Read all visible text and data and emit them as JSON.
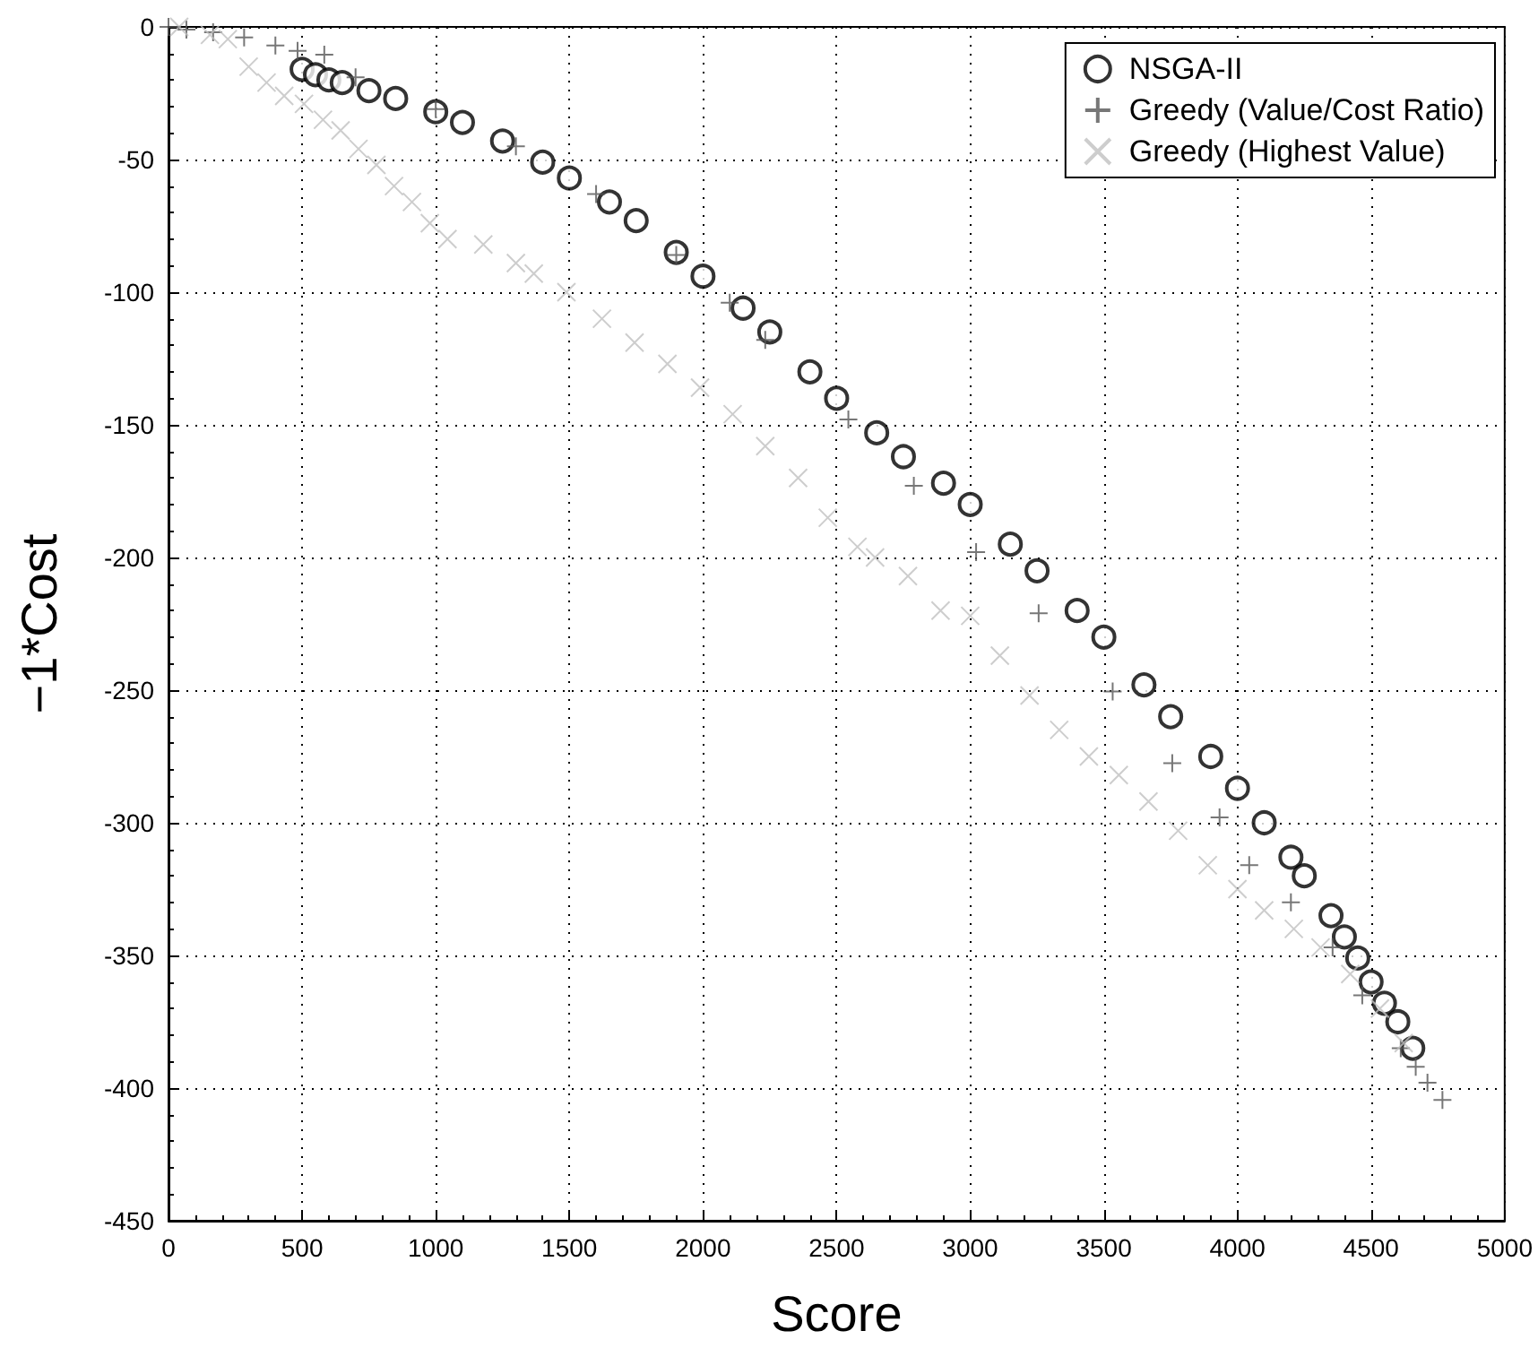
{
  "chart_data": {
    "type": "scatter",
    "xlabel": "Score",
    "ylabel": "−1*Cost",
    "xlim": [
      0,
      5000
    ],
    "ylim": [
      -450,
      0
    ],
    "xticks": [
      0,
      500,
      1000,
      1500,
      2000,
      2500,
      3000,
      3500,
      4000,
      4500,
      5000
    ],
    "yticks": [
      -450,
      -400,
      -350,
      -300,
      -250,
      -200,
      -150,
      -100,
      -50,
      0
    ],
    "grid": true,
    "legend": "top right",
    "series": [
      {
        "name": "NSGA-II",
        "color": "#000000",
        "marker": "circle",
        "x": [
          500,
          550,
          600,
          650,
          750,
          850,
          1000,
          1100,
          1250,
          1400,
          1500,
          1650,
          1750,
          1900,
          2000,
          2150,
          2250,
          2400,
          2500,
          2650,
          2750,
          2900,
          3000,
          3150,
          3250,
          3400,
          3500,
          3650,
          3750,
          3900,
          4000,
          4100,
          4200,
          4250,
          4350,
          4400,
          4450,
          4500,
          4550,
          4600,
          4656
        ],
        "values": [
          -16,
          -18,
          -20,
          -21,
          -24,
          -27,
          -32,
          -36,
          -43,
          -51,
          -57,
          -66,
          -73,
          -85,
          -94,
          -106,
          -115,
          -130,
          -140,
          -153,
          -162,
          -172,
          -180,
          -195,
          -205,
          -220,
          -230,
          -248,
          -260,
          -275,
          -287,
          -300,
          -313,
          -320,
          -335,
          -343,
          -351,
          -360,
          -368,
          -375,
          -385
        ]
      },
      {
        "name": "Greedy (Value/Cost Ratio)",
        "color": "#555555",
        "marker": "plus",
        "x": [
          0,
          67,
          167,
          283,
          400,
          483,
          583,
          700,
          1000,
          1300,
          1600,
          1900,
          2100,
          2233,
          2544,
          2789,
          3022,
          3256,
          3533,
          3756,
          3933,
          4044,
          4200,
          4356,
          4467,
          4611,
          4667,
          4711,
          4767
        ],
        "values": [
          0,
          -1,
          -2,
          -4,
          -7,
          -9,
          -10.5,
          -19,
          -31,
          -45,
          -63,
          -86,
          -104,
          -118,
          -148,
          -173,
          -198,
          -221,
          -250.5,
          -277.5,
          -298,
          -316,
          -330,
          -347,
          -365,
          -385,
          -392,
          -398,
          -404.5
        ]
      },
      {
        "name": "Greedy (Highest Value)",
        "color": "#c0c0c0",
        "marker": "cross",
        "x": [
          40,
          155,
          222,
          300,
          367,
          433,
          507,
          578,
          644,
          711,
          778,
          844,
          911,
          978,
          1044,
          1178,
          1300,
          1367,
          1489,
          1622,
          1744,
          1867,
          1989,
          2111,
          2233,
          2356,
          2467,
          2578,
          2644,
          2767,
          2889,
          3000,
          3111,
          3222,
          3333,
          3444,
          3556,
          3667,
          3778,
          3889,
          4000,
          4100,
          4211,
          4311,
          4422,
          4533,
          4622
        ],
        "values": [
          0,
          -3,
          -4.6,
          -15,
          -21,
          -26,
          -29,
          -35,
          -39,
          -46,
          -52,
          -60,
          -66,
          -74,
          -80,
          -82,
          -89,
          -93,
          -100,
          -110,
          -119,
          -127,
          -136,
          -146,
          -158,
          -170,
          -185,
          -196,
          -200,
          -207,
          -220,
          -222,
          -237,
          -252,
          -265,
          -275,
          -282,
          -292,
          -303,
          -316,
          -325,
          -333,
          -340,
          -347,
          -357,
          -370,
          -383
        ]
      }
    ]
  }
}
